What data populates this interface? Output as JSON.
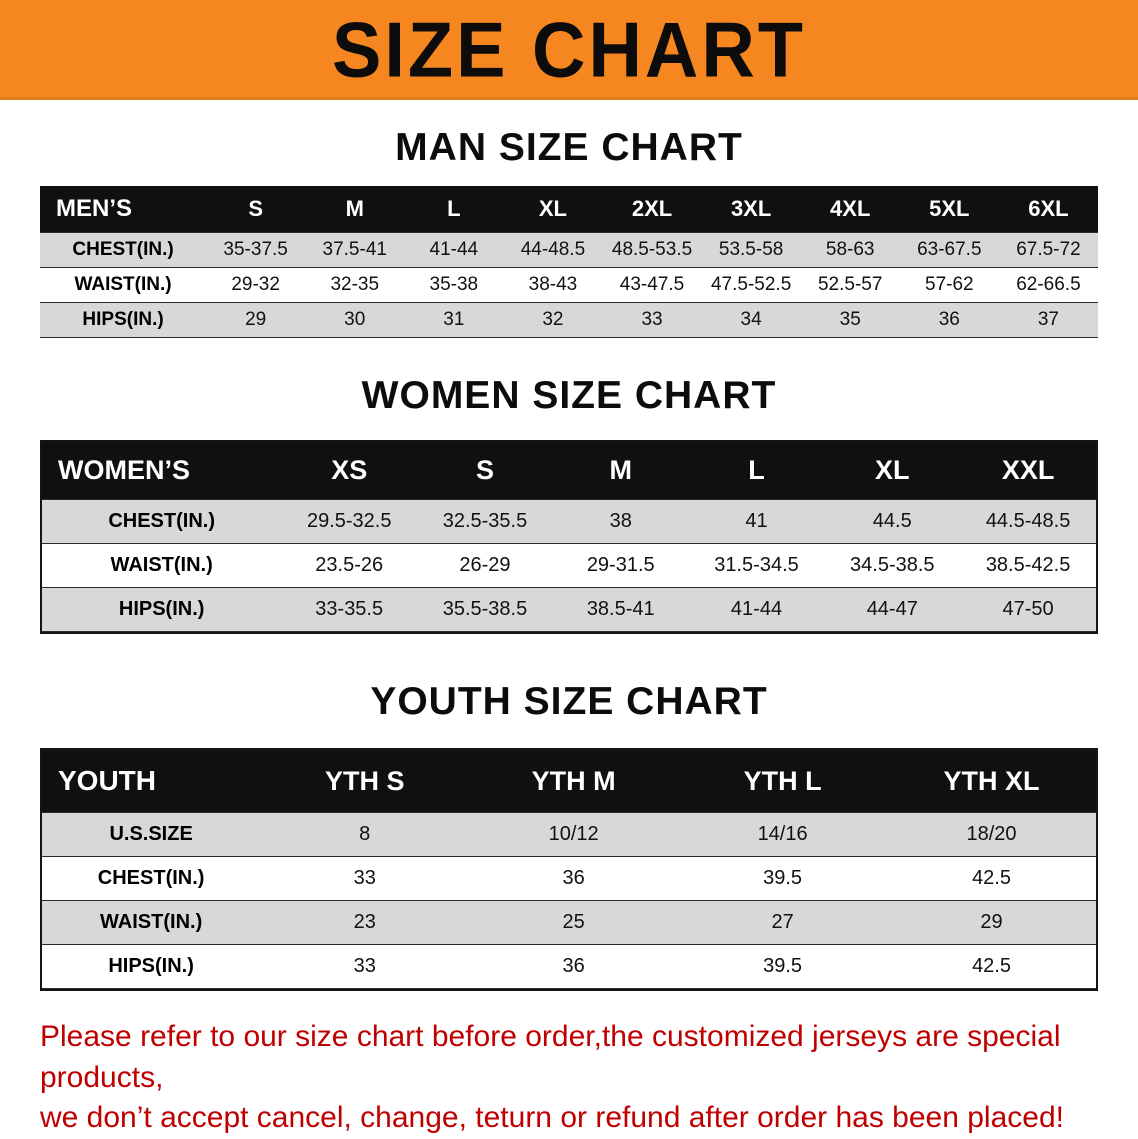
{
  "banner": {
    "title": "SIZE CHART"
  },
  "sections": [
    {
      "heading": "MAN SIZE CHART",
      "label": "MEN’S",
      "columns": [
        "S",
        "M",
        "L",
        "XL",
        "2XL",
        "3XL",
        "4XL",
        "5XL",
        "6XL"
      ],
      "rows": [
        {
          "label": "CHEST(IN.)",
          "values": [
            "35-37.5",
            "37.5-41",
            "41-44",
            "44-48.5",
            "48.5-53.5",
            "53.5-58",
            "58-63",
            "63-67.5",
            "67.5-72"
          ]
        },
        {
          "label": "WAIST(IN.)",
          "values": [
            "29-32",
            "32-35",
            "35-38",
            "38-43",
            "43-47.5",
            "47.5-52.5",
            "52.5-57",
            "57-62",
            "62-66.5"
          ]
        },
        {
          "label": "HIPS(IN.)",
          "values": [
            "29",
            "30",
            "31",
            "32",
            "33",
            "34",
            "35",
            "36",
            "37"
          ]
        }
      ]
    },
    {
      "heading": "WOMEN SIZE CHART",
      "label": "WOMEN’S",
      "columns": [
        "XS",
        "S",
        "M",
        "L",
        "XL",
        "XXL"
      ],
      "rows": [
        {
          "label": "CHEST(IN.)",
          "values": [
            "29.5-32.5",
            "32.5-35.5",
            "38",
            "41",
            "44.5",
            "44.5-48.5"
          ]
        },
        {
          "label": "WAIST(IN.)",
          "values": [
            "23.5-26",
            "26-29",
            "29-31.5",
            "31.5-34.5",
            "34.5-38.5",
            "38.5-42.5"
          ]
        },
        {
          "label": "HIPS(IN.)",
          "values": [
            "33-35.5",
            "35.5-38.5",
            "38.5-41",
            "41-44",
            "44-47",
            "47-50"
          ]
        }
      ]
    },
    {
      "heading": "YOUTH SIZE CHART",
      "label": "YOUTH",
      "columns": [
        "YTH S",
        "YTH M",
        "YTH L",
        "YTH XL"
      ],
      "rows": [
        {
          "label": "U.S.SIZE",
          "values": [
            "8",
            "10/12",
            "14/16",
            "18/20"
          ]
        },
        {
          "label": "CHEST(IN.)",
          "values": [
            "33",
            "36",
            "39.5",
            "42.5"
          ]
        },
        {
          "label": "WAIST(IN.)",
          "values": [
            "23",
            "25",
            "27",
            "29"
          ]
        },
        {
          "label": "HIPS(IN.)",
          "values": [
            "33",
            "36",
            "39.5",
            "42.5"
          ]
        }
      ]
    }
  ],
  "footer": {
    "line1": "Please refer to our size chart before order,the customized jerseys are special products,",
    "line2": "we don’t accept cancel, change, teturn or refund after order has been placed!"
  },
  "colors": {
    "banner_bg": "#f6861f",
    "table_header_bg": "#101010",
    "row_alt_bg": "#d8d8d8",
    "footer_text": "#c00000"
  }
}
